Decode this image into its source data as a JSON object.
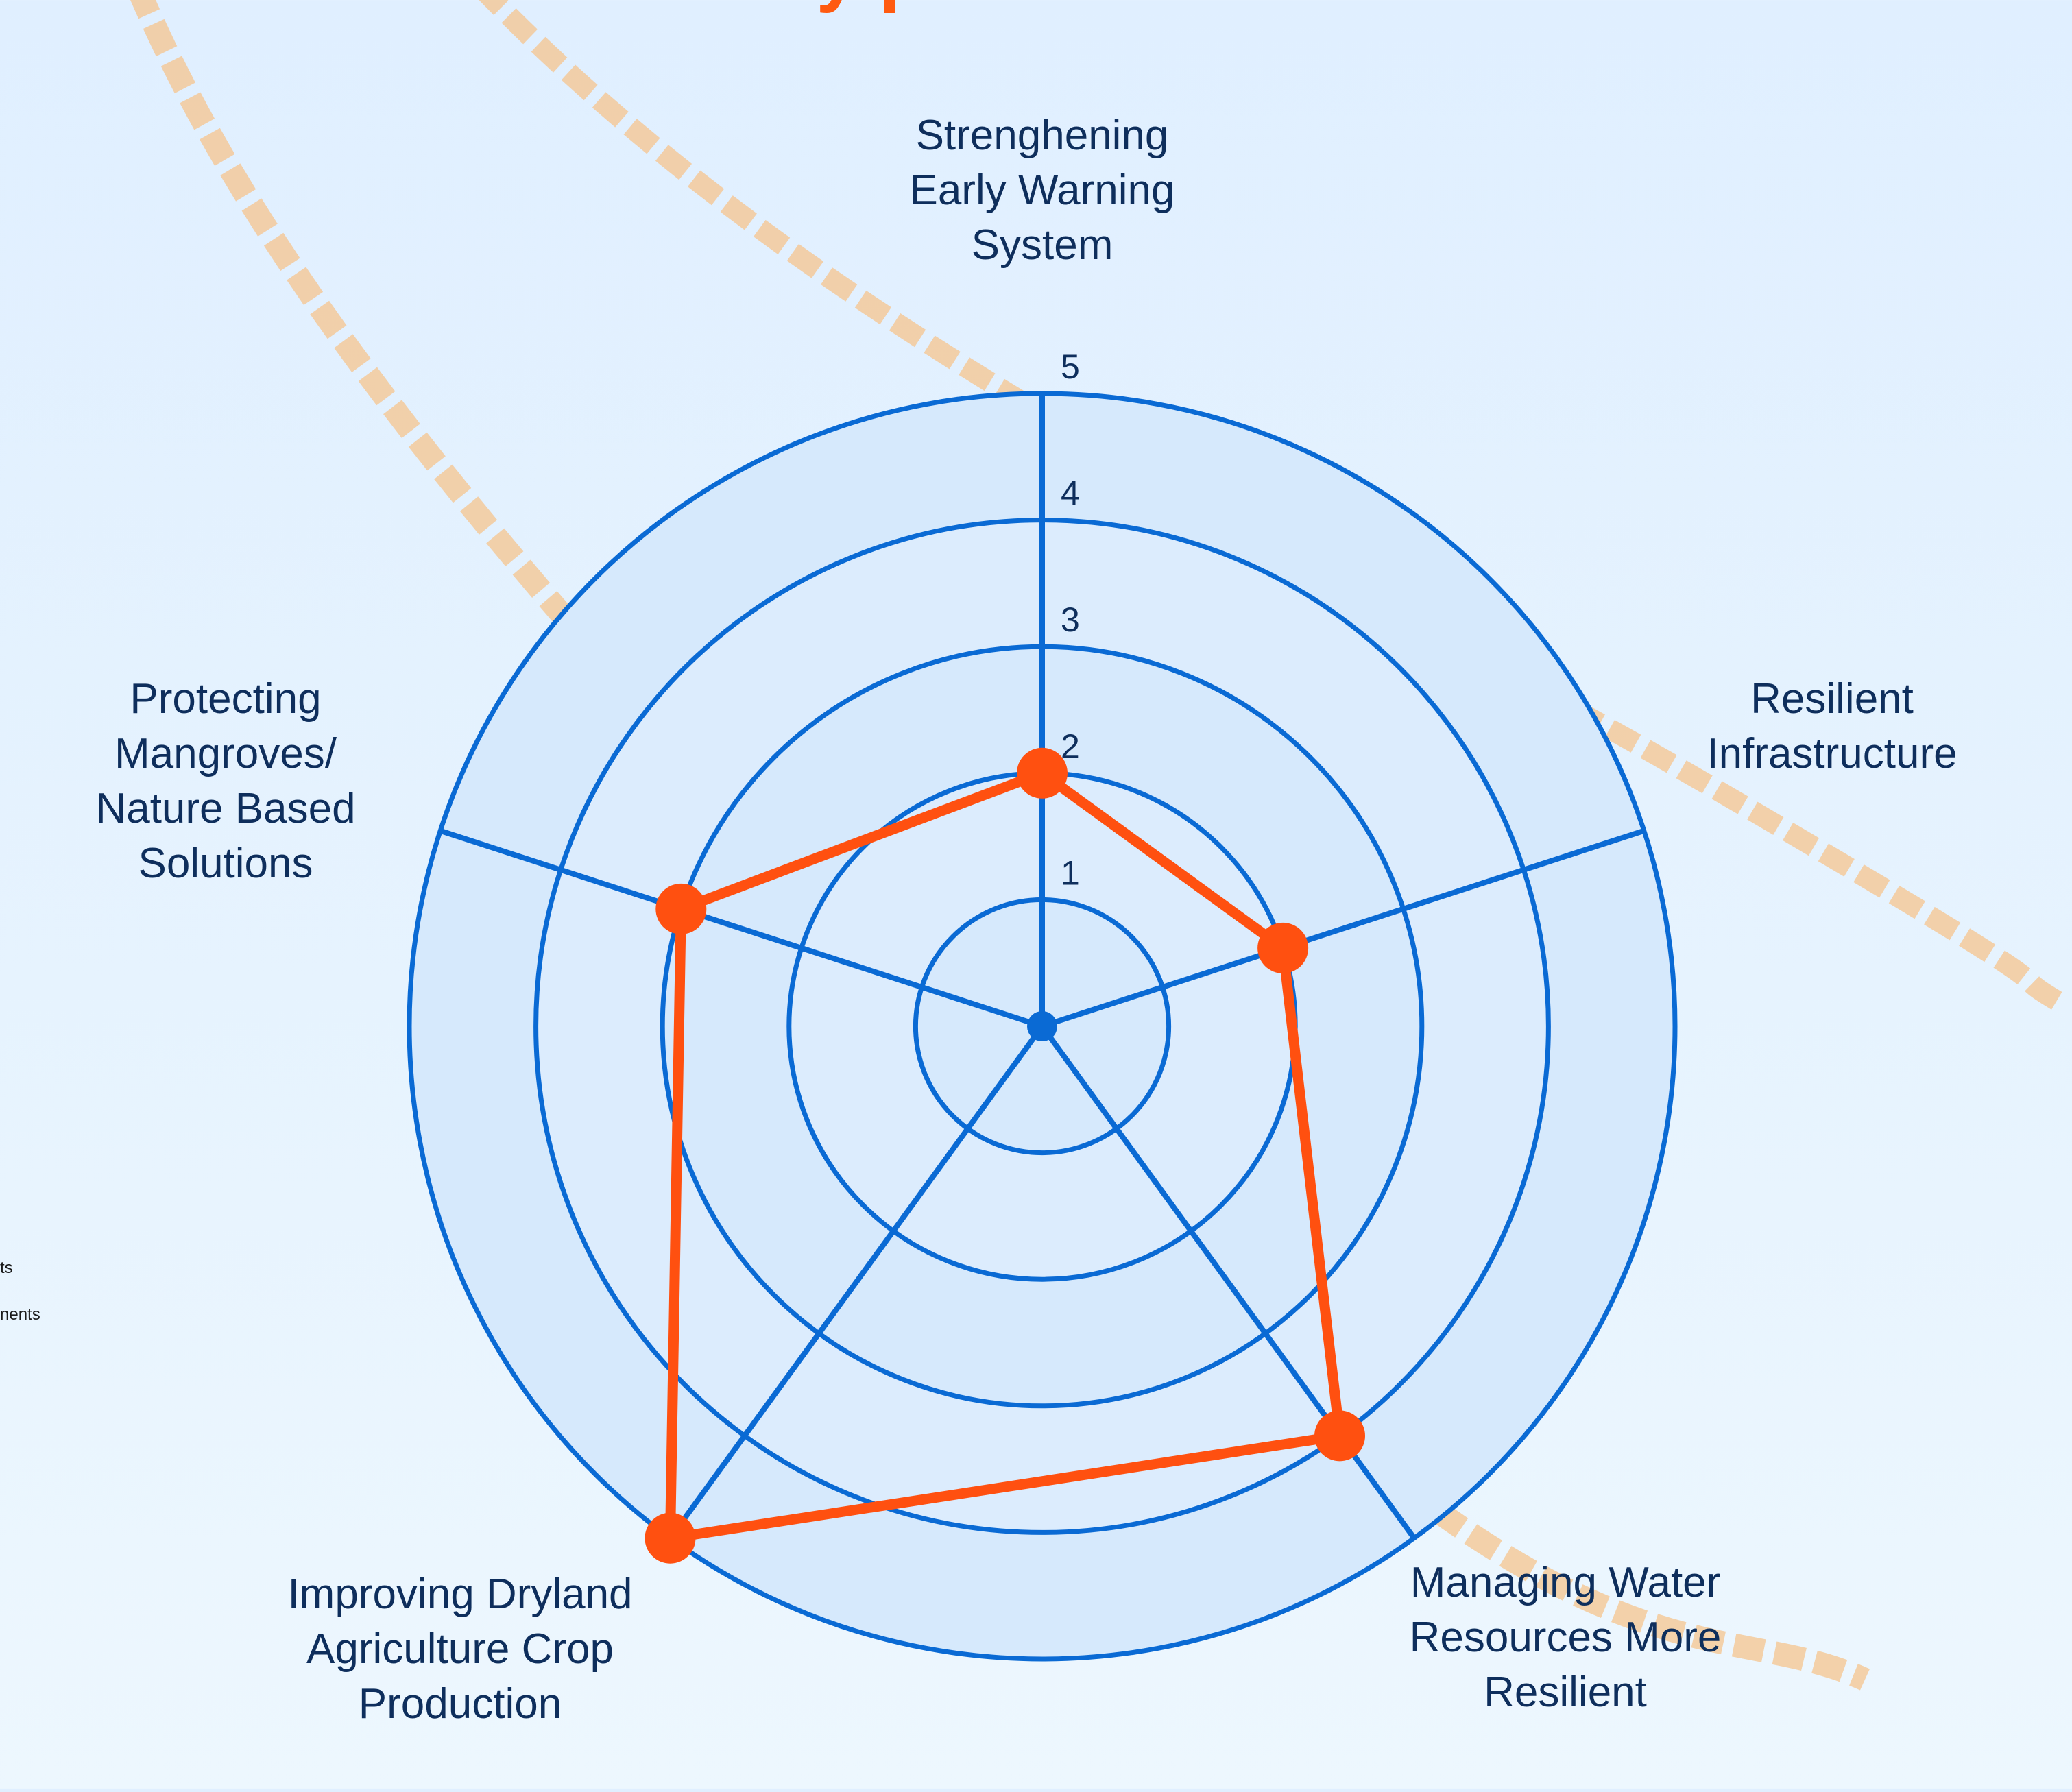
{
  "title_fragment": "y   p",
  "side_texts": [
    "ts",
    "nents"
  ],
  "chart_data": {
    "type": "radar",
    "axes": [
      "Strenghening Early Warning System",
      "Resilient Infrastructure",
      "Managing Water Resources More Resilient",
      "Improving Dryland Agriculture Crop Production",
      "Protecting Mangroves/ Nature Based Solutions"
    ],
    "axis_label_lines": [
      [
        "Strenghening",
        "Early Warning",
        "System"
      ],
      [
        "Resilient",
        "Infrastructure"
      ],
      [
        "Managing Water",
        "Resources More",
        "Resilient"
      ],
      [
        "Improving Dryland",
        "Agriculture Crop",
        "Production"
      ],
      [
        "Protecting",
        "Mangroves/",
        "Nature Based",
        "Solutions"
      ]
    ],
    "series": [
      {
        "values": [
          2.0,
          2.0,
          4.0,
          5.0,
          3.0
        ]
      }
    ],
    "ticks": [
      "1",
      "2",
      "3",
      "4",
      "5"
    ],
    "range": [
      0,
      5
    ],
    "grid": "circular",
    "colors": {
      "grid": "#0a6ad4",
      "series": "#ff5010",
      "fill_band": "#d6e9fc",
      "label": "#0e2e5c",
      "decor": "#f5c48e"
    }
  }
}
